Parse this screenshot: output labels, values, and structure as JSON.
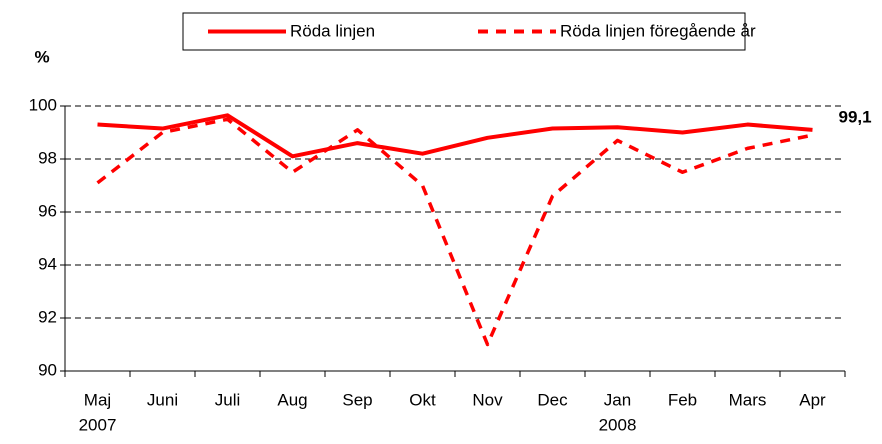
{
  "chart_data": {
    "type": "line",
    "y_label": "%",
    "categories": [
      "Maj",
      "Juni",
      "Juli",
      "Aug",
      "Sep",
      "Okt",
      "Nov",
      "Dec",
      "Jan",
      "Feb",
      "Mars",
      "Apr"
    ],
    "year_labels": [
      "2007",
      null,
      null,
      null,
      null,
      null,
      null,
      null,
      "2008",
      null,
      null,
      null
    ],
    "series": [
      {
        "name": "Röda linjen",
        "color": "#ff0000",
        "dash": false,
        "values": [
          99.3,
          99.15,
          99.65,
          98.1,
          98.6,
          98.2,
          98.8,
          99.15,
          99.2,
          99.0,
          99.3,
          99.1
        ],
        "value_labels": [
          null,
          null,
          null,
          null,
          null,
          null,
          null,
          null,
          null,
          null,
          null,
          "99,1"
        ]
      },
      {
        "name": "Röda linjen föregående år",
        "color": "#ff0000",
        "dash": true,
        "values": [
          97.1,
          99.0,
          99.5,
          97.5,
          99.1,
          97.0,
          91.0,
          96.6,
          98.7,
          97.5,
          98.4,
          98.9
        ]
      }
    ],
    "ylim": [
      90,
      100
    ],
    "yticks": [
      90,
      92,
      94,
      96,
      98,
      100
    ],
    "grid": true
  }
}
